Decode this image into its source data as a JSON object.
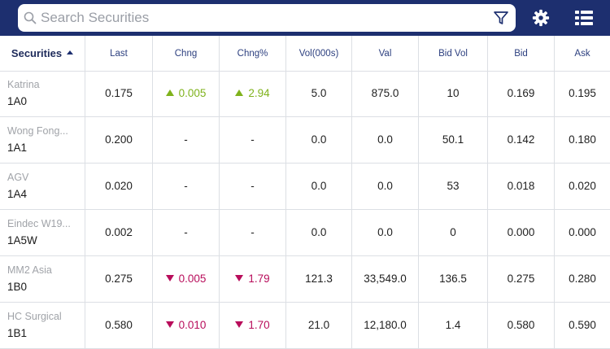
{
  "search": {
    "placeholder": "Search Securities"
  },
  "icons": {
    "search": "search-icon",
    "filter": "filter-icon",
    "settings": "gear-icon",
    "view": "list-view-icon"
  },
  "colors": {
    "header_bg": "#1d2f6f",
    "up": "#7fb21c",
    "down": "#b80d5b"
  },
  "table": {
    "headers": [
      "Securities",
      "Last",
      "Chng",
      "Chng%",
      "Vol(000s)",
      "Val",
      "Bid Vol",
      "Bid",
      "Ask"
    ],
    "sort": {
      "column": "Securities",
      "direction": "ascending"
    },
    "rows": [
      {
        "name": "Katrina",
        "code": "1A0",
        "last": "0.175",
        "chng": "0.005",
        "chng_pct": "2.94",
        "direction": "up",
        "vol": "5.0",
        "val": "875.0",
        "bid_vol": "10",
        "bid": "0.169",
        "ask": "0.195"
      },
      {
        "name": "Wong Fong...",
        "code": "1A1",
        "last": "0.200",
        "chng": "-",
        "chng_pct": "-",
        "direction": "none",
        "vol": "0.0",
        "val": "0.0",
        "bid_vol": "50.1",
        "bid": "0.142",
        "ask": "0.180"
      },
      {
        "name": "AGV",
        "code": "1A4",
        "last": "0.020",
        "chng": "-",
        "chng_pct": "-",
        "direction": "none",
        "vol": "0.0",
        "val": "0.0",
        "bid_vol": "53",
        "bid": "0.018",
        "ask": "0.020"
      },
      {
        "name": "Eindec W19...",
        "code": "1A5W",
        "last": "0.002",
        "chng": "-",
        "chng_pct": "-",
        "direction": "none",
        "vol": "0.0",
        "val": "0.0",
        "bid_vol": "0",
        "bid": "0.000",
        "ask": "0.000"
      },
      {
        "name": "MM2 Asia",
        "code": "1B0",
        "last": "0.275",
        "chng": "0.005",
        "chng_pct": "1.79",
        "direction": "down",
        "vol": "121.3",
        "val": "33,549.0",
        "bid_vol": "136.5",
        "bid": "0.275",
        "ask": "0.280"
      },
      {
        "name": "HC Surgical",
        "code": "1B1",
        "last": "0.580",
        "chng": "0.010",
        "chng_pct": "1.70",
        "direction": "down",
        "vol": "21.0",
        "val": "12,180.0",
        "bid_vol": "1.4",
        "bid": "0.580",
        "ask": "0.590"
      }
    ]
  }
}
